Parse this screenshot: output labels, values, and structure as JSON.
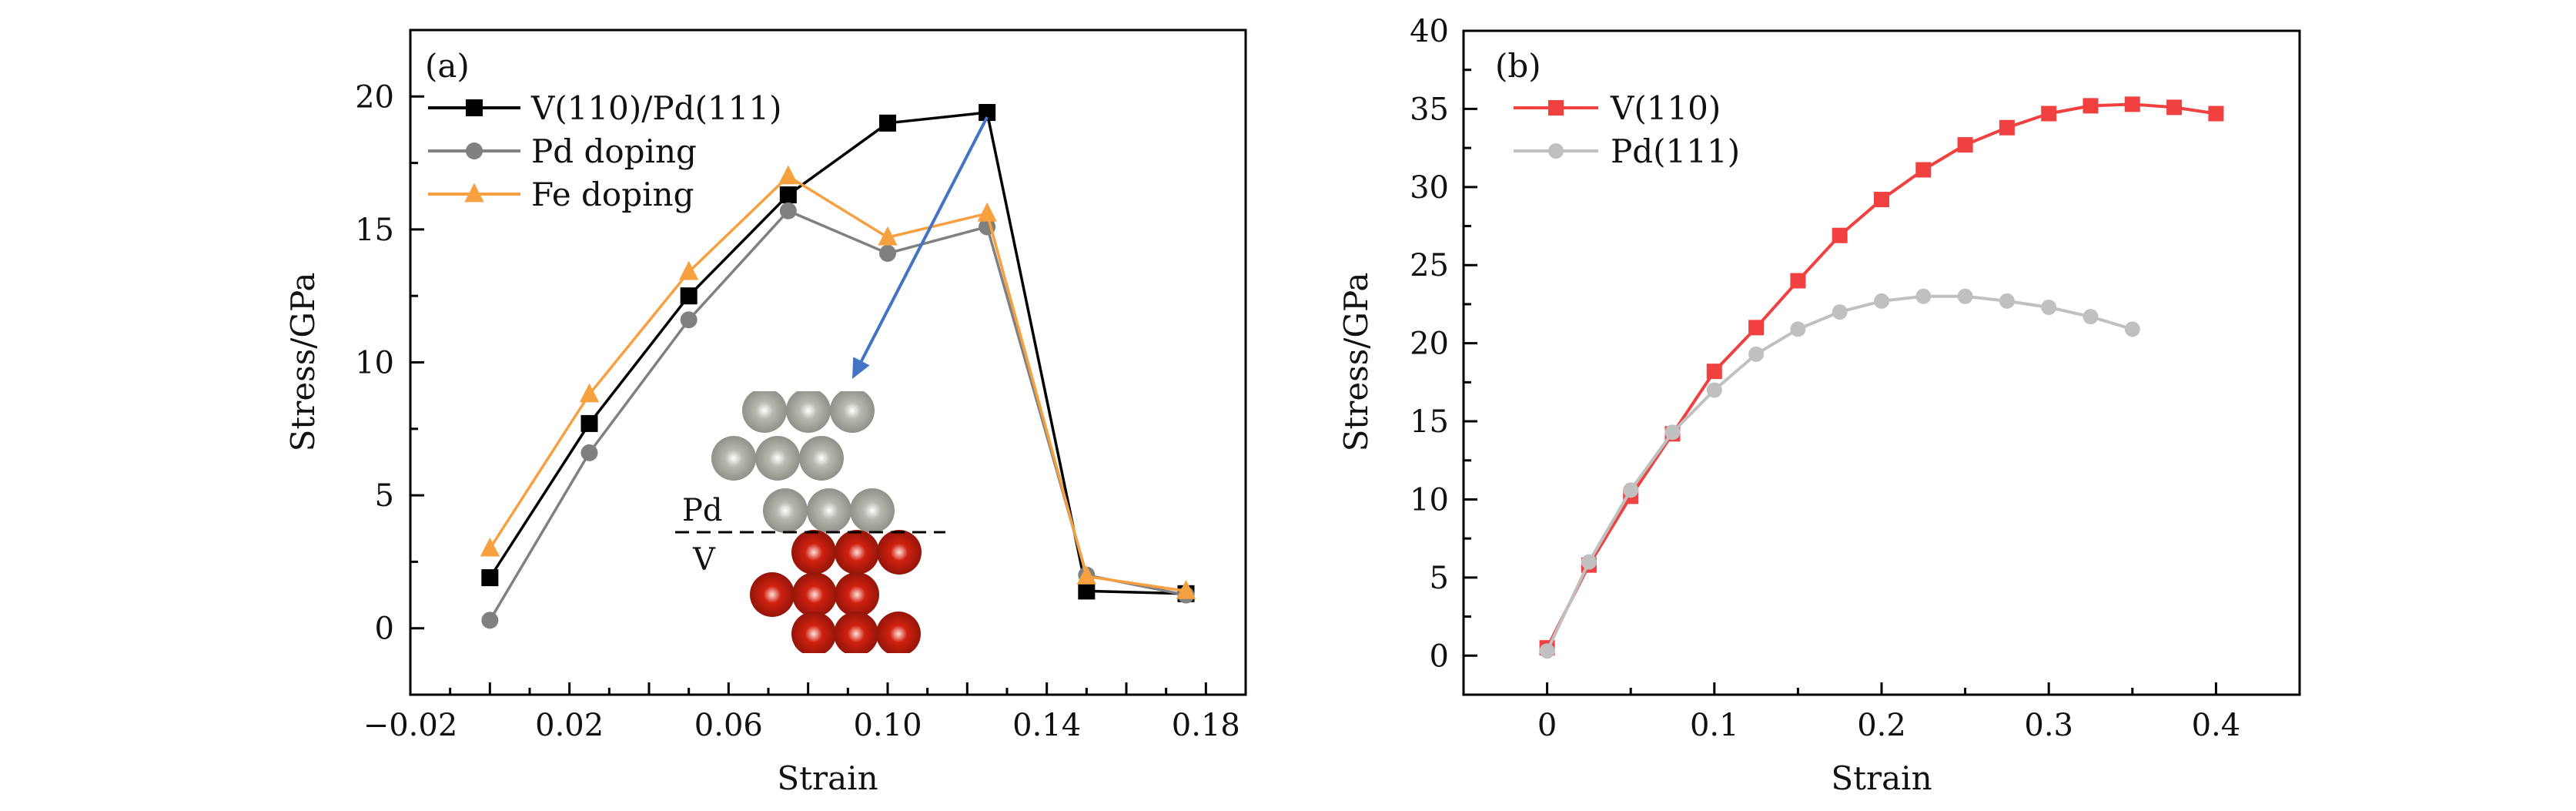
{
  "chart_data": [
    {
      "panel": "(a)",
      "type": "line",
      "xlabel": "Strain",
      "ylabel": "Stress/GPa",
      "xlim": [
        -0.02,
        0.19
      ],
      "ylim": [
        -2.5,
        22.5
      ],
      "x_tick_labels": [
        "−0.02",
        "0.02",
        "0.06",
        "0.10",
        "0.14",
        "0.18"
      ],
      "x_tick_values": [
        -0.02,
        0.02,
        0.06,
        0.1,
        0.14,
        0.18
      ],
      "y_tick_labels": [
        "0",
        "5",
        "10",
        "15",
        "20"
      ],
      "y_tick_values": [
        0,
        5,
        10,
        15,
        20
      ],
      "grid": false,
      "legend_position": "top-left",
      "x": [
        0,
        0.025,
        0.05,
        0.075,
        0.1,
        0.125,
        0.15,
        0.175
      ],
      "series": [
        {
          "name": "V(110)/Pd(111)",
          "color": "#000000",
          "marker": "square",
          "values": [
            1.9,
            7.7,
            12.5,
            16.3,
            19.0,
            19.4,
            1.4,
            1.3
          ]
        },
        {
          "name": "Pd doping",
          "color": "#808080",
          "marker": "circle",
          "values": [
            0.3,
            6.6,
            11.6,
            15.7,
            14.1,
            15.1,
            2.0,
            1.25
          ]
        },
        {
          "name": "Fe doping",
          "color": "#f7a040",
          "marker": "triangle",
          "values": [
            3.0,
            8.8,
            13.4,
            17.0,
            14.7,
            15.6,
            1.95,
            1.4
          ]
        }
      ],
      "annotations": {
        "arrow": {
          "color": "#4472c4",
          "from_point": {
            "x": 0.125,
            "y": 19.4
          },
          "to_point": {
            "x": 0.091,
            "y": 9.5
          }
        },
        "inset": {
          "upper_label": "Pd",
          "lower_label": "V",
          "upper_atom_color": "#b8b8b0",
          "lower_atom_color": "#d02010"
        }
      }
    },
    {
      "panel": "(b)",
      "type": "line",
      "xlabel": "Strain",
      "ylabel": "Stress/GPa",
      "xlim": [
        -0.05,
        0.45
      ],
      "ylim": [
        -2.5,
        40
      ],
      "x_tick_labels": [
        "0",
        "0.1",
        "0.2",
        "0.3",
        "0.4"
      ],
      "x_tick_values": [
        0,
        0.1,
        0.2,
        0.3,
        0.4
      ],
      "y_tick_labels": [
        "0",
        "5",
        "10",
        "15",
        "20",
        "25",
        "30",
        "35",
        "40"
      ],
      "y_tick_values": [
        0,
        5,
        10,
        15,
        20,
        25,
        30,
        35,
        40
      ],
      "grid": false,
      "legend_position": "top-left",
      "series": [
        {
          "name": "V(110)",
          "color": "#f04040",
          "marker": "square",
          "x": [
            0,
            0.025,
            0.05,
            0.075,
            0.1,
            0.125,
            0.15,
            0.175,
            0.2,
            0.225,
            0.25,
            0.275,
            0.3,
            0.325,
            0.35,
            0.375,
            0.4
          ],
          "values": [
            0.5,
            5.8,
            10.2,
            14.2,
            18.2,
            21.0,
            24.0,
            26.9,
            29.2,
            31.1,
            32.7,
            33.8,
            34.7,
            35.2,
            35.3,
            35.1,
            34.7
          ]
        },
        {
          "name": "Pd(111)",
          "color": "#c0c0c0",
          "marker": "circle",
          "x": [
            0,
            0.025,
            0.05,
            0.075,
            0.1,
            0.125,
            0.15,
            0.175,
            0.2,
            0.225,
            0.25,
            0.275,
            0.3,
            0.325,
            0.35
          ],
          "values": [
            0.3,
            6.0,
            10.6,
            14.3,
            17.0,
            19.3,
            20.9,
            22.0,
            22.7,
            23.0,
            23.0,
            22.7,
            22.3,
            21.7,
            20.9
          ]
        }
      ]
    }
  ]
}
